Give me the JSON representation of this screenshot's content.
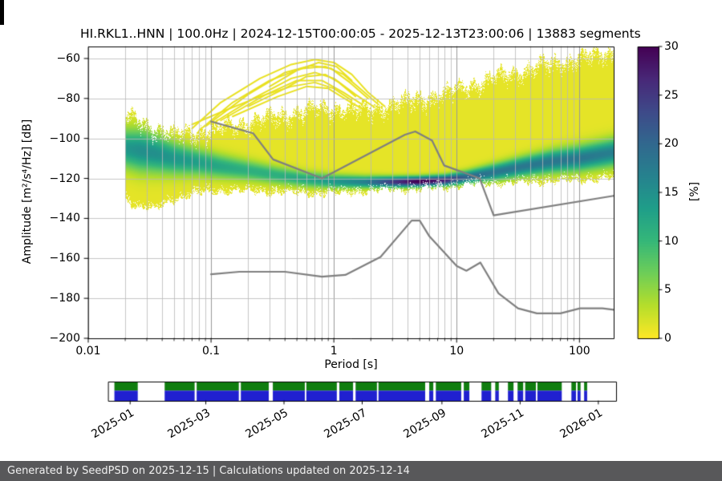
{
  "footer": {
    "text": "Generated by SeedPSD on 2025-12-15 | Calculations updated on 2025-12-14",
    "bg": "#58585a",
    "fg": "#f0f0f0"
  },
  "chart_data": {
    "type": "heatmap",
    "title": "HI.RKL1..HNN | 100.0Hz | 2024-12-15T00:00:05 - 2025-12-13T23:00:06 | 13883 segments",
    "xlabel": "Period [s]",
    "ylabel": "Amplitude [m²/s⁴/Hz] [dB]",
    "xscale": "log",
    "xlim": [
      0.01,
      190
    ],
    "ylim": [
      -200,
      -54
    ],
    "grid": true,
    "x_ticks": {
      "values": [
        0.01,
        0.1,
        1,
        10,
        100
      ],
      "labels": [
        "0.01",
        "0.1",
        "1",
        "10",
        "100"
      ]
    },
    "y_ticks": {
      "values": [
        -60,
        -80,
        -100,
        -120,
        -140,
        -160,
        -180,
        -200
      ],
      "labels": [
        "−60",
        "−80",
        "−100",
        "−120",
        "−140",
        "−160",
        "−180",
        "−200"
      ]
    },
    "style": {
      "grid_major": "#989898",
      "grid_minor": "#b8b8b8",
      "arc_color": "#e9e120",
      "background": "#ffffff"
    },
    "colorbar": {
      "label": "[%]",
      "min": 0,
      "max": 30,
      "ticks": [
        0,
        5,
        10,
        15,
        20,
        25,
        30
      ],
      "colormap": "viridis_r",
      "stops": [
        "#fde725",
        "#b5de2b",
        "#6ece58",
        "#35b779",
        "#1f9e89",
        "#26828e",
        "#31688e",
        "#3e4a89",
        "#482878",
        "#440154"
      ]
    },
    "ppsd_profile": [
      {
        "p": 0.02,
        "top": -87,
        "bot": -131,
        "mode": -105,
        "sig": 6.5,
        "peak": 13
      },
      {
        "p": 0.026,
        "top": -90,
        "bot": -135,
        "mode": -106,
        "sig": 7.0,
        "peak": 14
      },
      {
        "p": 0.035,
        "top": -93,
        "bot": -136,
        "mode": -107.5,
        "sig": 6.5,
        "peak": 14
      },
      {
        "p": 0.05,
        "top": -96,
        "bot": -131,
        "mode": -110,
        "sig": 5.5,
        "peak": 13
      },
      {
        "p": 0.08,
        "top": -95,
        "bot": -128,
        "mode": -112,
        "sig": 4.5,
        "peak": 12
      },
      {
        "p": 0.12,
        "top": -93,
        "bot": -127,
        "mode": -114,
        "sig": 4.0,
        "peak": 11
      },
      {
        "p": 0.2,
        "top": -90,
        "bot": -127,
        "mode": -116,
        "sig": 3.5,
        "peak": 10
      },
      {
        "p": 0.35,
        "top": -87,
        "bot": -127.5,
        "mode": -118.5,
        "sig": 3.0,
        "peak": 10
      },
      {
        "p": 0.6,
        "top": -84,
        "bot": -128,
        "mode": -120.5,
        "sig": 2.6,
        "peak": 11
      },
      {
        "p": 1.0,
        "top": -83,
        "bot": -128,
        "mode": -121.5,
        "sig": 2.3,
        "peak": 13
      },
      {
        "p": 1.8,
        "top": -84,
        "bot": -127,
        "mode": -121.8,
        "sig": 2.0,
        "peak": 16
      },
      {
        "p": 3.0,
        "top": -81,
        "bot": -126,
        "mode": -121.8,
        "sig": 1.8,
        "peak": 24
      },
      {
        "p": 5.0,
        "top": -78,
        "bot": -126,
        "mode": -121.6,
        "sig": 1.7,
        "peak": 30
      },
      {
        "p": 8.0,
        "top": -76,
        "bot": -125,
        "mode": -121.0,
        "sig": 1.8,
        "peak": 26
      },
      {
        "p": 12.0,
        "top": -72,
        "bot": -123.5,
        "mode": -119.5,
        "sig": 2.2,
        "peak": 19
      },
      {
        "p": 20.0,
        "top": -68,
        "bot": -123,
        "mode": -117,
        "sig": 2.8,
        "peak": 17
      },
      {
        "p": 35.0,
        "top": -64,
        "bot": -122.5,
        "mode": -114,
        "sig": 3.3,
        "peak": 17
      },
      {
        "p": 60.0,
        "top": -60.5,
        "bot": -122,
        "mode": -111.5,
        "sig": 3.8,
        "peak": 17
      },
      {
        "p": 100.0,
        "top": -58,
        "bot": -121.5,
        "mode": -110,
        "sig": 4.2,
        "peak": 17
      },
      {
        "p": 190.0,
        "top": -55,
        "bot": -120,
        "mode": -107,
        "sig": 4.6,
        "peak": 16
      }
    ],
    "event_arcs": [
      [
        [
          0.07,
          -95
        ],
        [
          0.12,
          -82
        ],
        [
          0.25,
          -70
        ],
        [
          0.45,
          -63
        ],
        [
          0.7,
          -60.5
        ],
        [
          1.0,
          -62
        ],
        [
          1.4,
          -68
        ],
        [
          1.9,
          -77
        ],
        [
          2.6,
          -84
        ]
      ],
      [
        [
          0.08,
          -96
        ],
        [
          0.15,
          -82
        ],
        [
          0.3,
          -71
        ],
        [
          0.55,
          -65
        ],
        [
          0.85,
          -64
        ],
        [
          1.2,
          -68
        ],
        [
          1.7,
          -76
        ],
        [
          2.3,
          -83
        ]
      ],
      [
        [
          0.09,
          -94
        ],
        [
          0.2,
          -78
        ],
        [
          0.4,
          -67
        ],
        [
          0.65,
          -63.5
        ],
        [
          0.95,
          -65
        ],
        [
          1.35,
          -72
        ],
        [
          1.9,
          -80
        ]
      ],
      [
        [
          0.1,
          -93
        ],
        [
          0.22,
          -80
        ],
        [
          0.45,
          -70
        ],
        [
          0.7,
          -67
        ],
        [
          1.0,
          -70
        ],
        [
          1.5,
          -78
        ],
        [
          2.1,
          -84
        ]
      ],
      [
        [
          0.12,
          -91
        ],
        [
          0.28,
          -78
        ],
        [
          0.5,
          -71
        ],
        [
          0.8,
          -71
        ],
        [
          1.2,
          -77
        ],
        [
          1.7,
          -83
        ]
      ],
      [
        [
          0.15,
          -89
        ],
        [
          0.35,
          -79
        ],
        [
          0.6,
          -74
        ],
        [
          0.9,
          -75
        ],
        [
          1.3,
          -81
        ],
        [
          1.8,
          -86
        ]
      ],
      [
        [
          0.07,
          -93
        ],
        [
          0.13,
          -86
        ],
        [
          0.25,
          -79
        ],
        [
          0.45,
          -74
        ],
        [
          0.7,
          -72
        ],
        [
          1.0,
          -75
        ],
        [
          1.4,
          -81
        ]
      ],
      [
        [
          0.2,
          -84
        ],
        [
          0.4,
          -75
        ],
        [
          0.6,
          -69
        ],
        [
          0.85,
          -68
        ],
        [
          1.1,
          -72
        ],
        [
          1.5,
          -79
        ]
      ],
      [
        [
          0.3,
          -74
        ],
        [
          0.5,
          -66
        ],
        [
          0.75,
          -62
        ],
        [
          1.05,
          -64
        ],
        [
          1.4,
          -71
        ]
      ]
    ],
    "noise_models": {
      "color": "#7f7f7f",
      "nhnm": [
        [
          0.1,
          -91.5
        ],
        [
          0.22,
          -97.4
        ],
        [
          0.32,
          -110.5
        ],
        [
          0.8,
          -120.0
        ],
        [
          3.8,
          -98.1
        ],
        [
          4.6,
          -96.5
        ],
        [
          6.3,
          -101.0
        ],
        [
          7.9,
          -113.5
        ],
        [
          15.4,
          -120.0
        ],
        [
          20.0,
          -138.5
        ],
        [
          190.0,
          -128.7
        ]
      ],
      "nlnm": [
        [
          0.1,
          -168.0
        ],
        [
          0.17,
          -166.7
        ],
        [
          0.4,
          -166.7
        ],
        [
          0.8,
          -169.2
        ],
        [
          1.24,
          -168.3
        ],
        [
          2.4,
          -159.3
        ],
        [
          4.3,
          -141.1
        ],
        [
          5.0,
          -141.1
        ],
        [
          6.0,
          -149.0
        ],
        [
          10.0,
          -163.8
        ],
        [
          12.0,
          -166.2
        ],
        [
          15.6,
          -162.1
        ],
        [
          21.9,
          -177.5
        ],
        [
          31.6,
          -185.0
        ],
        [
          45.0,
          -187.5
        ],
        [
          70.0,
          -187.5
        ],
        [
          101.0,
          -185.0
        ],
        [
          154.0,
          -185.0
        ],
        [
          190.0,
          -185.7
        ]
      ]
    },
    "timeline": {
      "ticks": [
        "2025-01",
        "2025-03",
        "2025-05",
        "2025-07",
        "2025-09",
        "2025-11",
        "2026-01"
      ],
      "tick_positions": [
        0.043,
        0.192,
        0.346,
        0.5,
        0.657,
        0.811,
        0.965
      ],
      "colors": {
        "top": "#0f7d0f",
        "bottom": "#2020d0"
      },
      "segments": [
        [
          0.012,
          0.058
        ],
        [
          0.111,
          0.17
        ],
        [
          0.174,
          0.257
        ],
        [
          0.261,
          0.316
        ],
        [
          0.324,
          0.387
        ],
        [
          0.39,
          0.45
        ],
        [
          0.455,
          0.482
        ],
        [
          0.487,
          0.529
        ],
        [
          0.532,
          0.624
        ],
        [
          0.632,
          0.64
        ],
        [
          0.645,
          0.695
        ],
        [
          0.7,
          0.711
        ],
        [
          0.735,
          0.754
        ],
        [
          0.762,
          0.769
        ],
        [
          0.787,
          0.798
        ],
        [
          0.806,
          0.817
        ],
        [
          0.821,
          0.842
        ],
        [
          0.845,
          0.893
        ],
        [
          0.912,
          0.921
        ],
        [
          0.924,
          0.93
        ],
        [
          0.937,
          0.943
        ]
      ]
    }
  }
}
